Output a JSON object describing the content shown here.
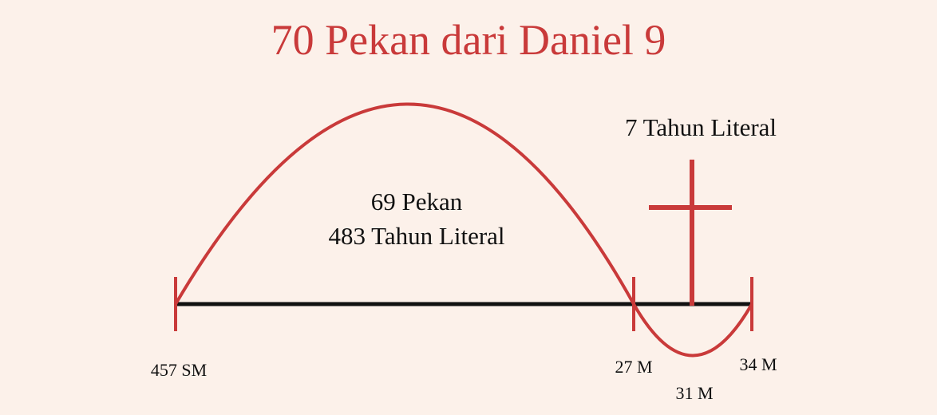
{
  "title": "70 Pekan dari Daniel 9",
  "arc_label": {
    "line1": "69 Pekan",
    "line2": "483 Tahun Literal"
  },
  "week_label": "7 Tahun Literal",
  "timeline": {
    "start": "457 SM",
    "mid": "27 M",
    "cross": "31 M",
    "end": "34 M"
  },
  "colors": {
    "background": "#fcf1ea",
    "accent": "#c93a3a",
    "line": "#111111"
  },
  "icons": {
    "cross": "cross-icon"
  }
}
